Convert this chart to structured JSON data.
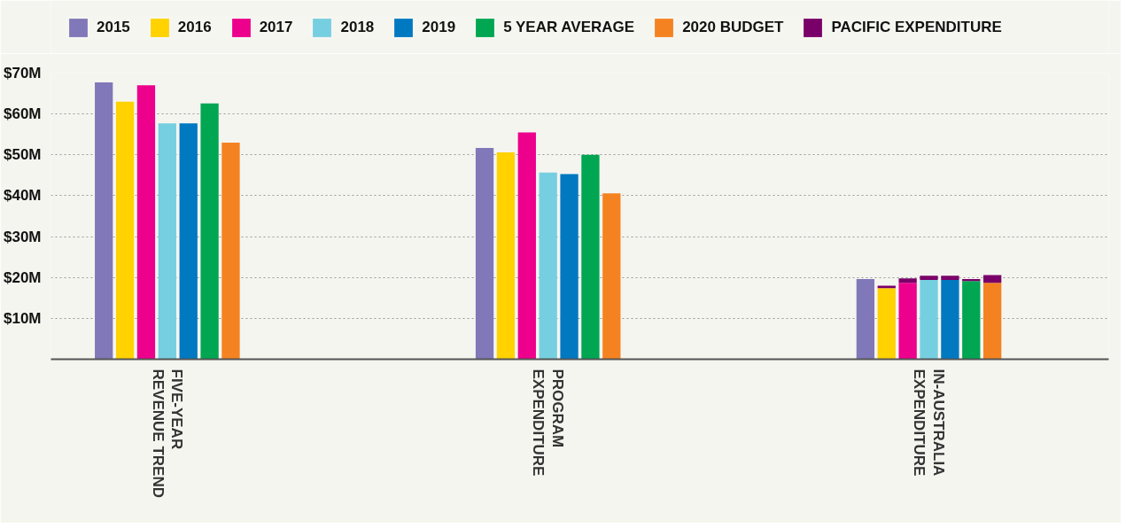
{
  "chart_data": {
    "type": "bar",
    "stacked": true,
    "categories": [
      null,
      null,
      null,
      null,
      null,
      "FIVE-YEAR REVENUE TREND",
      null,
      null,
      null,
      null,
      null,
      null,
      null,
      null,
      null,
      null,
      null,
      null,
      null,
      null,
      null,
      null,
      null,
      "PROGRAM EXPENDITURE",
      null,
      null,
      null,
      null,
      null,
      null,
      null,
      null,
      null,
      null,
      null,
      null,
      null,
      null,
      null,
      null,
      null,
      "IN-AUSTRALIA EXPENDITURE",
      null,
      null,
      null,
      null,
      null,
      null,
      null,
      null
    ],
    "series": [
      {
        "name": "2015",
        "color": "#8078b8",
        "values": [
          null,
          null,
          67.7,
          null,
          null,
          null,
          null,
          null,
          null,
          null,
          null,
          null,
          null,
          null,
          null,
          null,
          null,
          null,
          null,
          null,
          51.7,
          null,
          null,
          null,
          null,
          null,
          null,
          null,
          null,
          null,
          null,
          null,
          null,
          null,
          null,
          null,
          null,
          null,
          19.6,
          null,
          null,
          null,
          null,
          null,
          null,
          null,
          null,
          null,
          null,
          null
        ]
      },
      {
        "name": "2016",
        "color": "#ffd200",
        "values": [
          null,
          null,
          null,
          63,
          null,
          null,
          null,
          null,
          null,
          null,
          null,
          null,
          null,
          null,
          null,
          null,
          null,
          null,
          null,
          null,
          null,
          50.6,
          null,
          null,
          null,
          null,
          null,
          null,
          null,
          null,
          null,
          null,
          null,
          null,
          null,
          null,
          null,
          null,
          null,
          17.4,
          null,
          null,
          null,
          null,
          null,
          null,
          null,
          null,
          null,
          null
        ]
      },
      {
        "name": "2017",
        "color": "#ec008c",
        "values": [
          null,
          null,
          null,
          null,
          67,
          null,
          null,
          null,
          null,
          null,
          null,
          null,
          null,
          null,
          null,
          null,
          null,
          null,
          null,
          null,
          null,
          null,
          55.5,
          null,
          null,
          null,
          null,
          null,
          null,
          null,
          null,
          null,
          null,
          null,
          null,
          null,
          null,
          null,
          null,
          null,
          18.7,
          null,
          null,
          null,
          null,
          null,
          null,
          null,
          null,
          null
        ]
      },
      {
        "name": "2018",
        "color": "#76cfe0",
        "values": [
          null,
          null,
          null,
          null,
          null,
          57.7,
          null,
          null,
          null,
          null,
          null,
          null,
          null,
          null,
          null,
          null,
          null,
          null,
          null,
          null,
          null,
          null,
          null,
          45.7,
          null,
          null,
          null,
          null,
          null,
          null,
          null,
          null,
          null,
          null,
          null,
          null,
          null,
          null,
          null,
          null,
          null,
          19.4,
          null,
          null,
          null,
          null,
          null,
          null,
          null,
          null
        ]
      },
      {
        "name": "2019",
        "color": "#0079c1",
        "values": [
          null,
          null,
          null,
          null,
          null,
          null,
          57.7,
          null,
          null,
          null,
          null,
          null,
          null,
          null,
          null,
          null,
          null,
          null,
          null,
          null,
          null,
          null,
          null,
          null,
          45.3,
          null,
          null,
          null,
          null,
          null,
          null,
          null,
          null,
          null,
          null,
          null,
          null,
          null,
          null,
          null,
          null,
          null,
          19.4,
          null,
          null,
          null,
          null,
          null,
          null,
          null
        ]
      },
      {
        "name": "5 YEAR AVERAGE",
        "color": "#00a651",
        "values": [
          null,
          null,
          null,
          null,
          null,
          null,
          null,
          62.6,
          null,
          null,
          null,
          null,
          null,
          null,
          null,
          null,
          null,
          null,
          null,
          null,
          null,
          null,
          null,
          null,
          null,
          50,
          null,
          null,
          null,
          null,
          null,
          null,
          null,
          null,
          null,
          null,
          null,
          null,
          null,
          null,
          null,
          null,
          null,
          19.1,
          null,
          null,
          null,
          null,
          null,
          null
        ]
      },
      {
        "name": "2020 BUDGET",
        "color": "#f58220",
        "values": [
          null,
          null,
          null,
          null,
          null,
          null,
          null,
          null,
          53,
          null,
          null,
          null,
          null,
          null,
          null,
          null,
          null,
          null,
          null,
          null,
          null,
          null,
          null,
          null,
          null,
          null,
          40.6,
          null,
          null,
          null,
          null,
          null,
          null,
          null,
          null,
          null,
          null,
          null,
          null,
          null,
          null,
          null,
          null,
          null,
          18.7,
          null,
          null,
          null,
          null,
          null
        ]
      },
      {
        "name": "PACIFIC EXPENDITURE",
        "color": "#7a0069",
        "values": [
          null,
          null,
          null,
          null,
          null,
          null,
          null,
          null,
          null,
          null,
          null,
          null,
          null,
          null,
          null,
          null,
          null,
          null,
          null,
          null,
          null,
          null,
          null,
          null,
          null,
          null,
          null,
          null,
          null,
          null,
          null,
          null,
          null,
          null,
          null,
          null,
          null,
          null,
          null,
          0.6,
          1.1,
          1.0,
          1.0,
          0.5,
          1.9,
          null,
          null,
          null,
          null,
          null
        ]
      }
    ],
    "ylim": [
      0,
      70
    ],
    "yticks": [
      {
        "value": 10,
        "label": "$10M"
      },
      {
        "value": 20,
        "label": "$20M"
      },
      {
        "value": 30,
        "label": "$30M"
      },
      {
        "value": 40,
        "label": "$40M"
      },
      {
        "value": 50,
        "label": "$50M"
      },
      {
        "value": 60,
        "label": "$60M"
      },
      {
        "value": 70,
        "label": "$70M"
      }
    ],
    "grid": "y",
    "legend": "top"
  }
}
